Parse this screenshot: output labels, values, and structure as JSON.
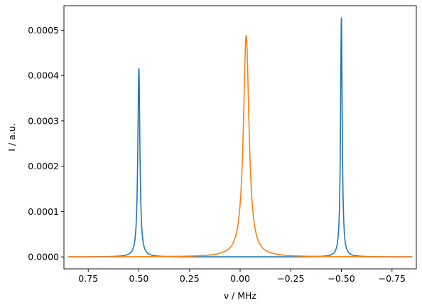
{
  "chart_data": {
    "type": "line",
    "xlabel": "ν / MHz",
    "ylabel": "I / a.u.",
    "x_inverted": true,
    "xlim": [
      0.87,
      -0.87
    ],
    "ylim": [
      -2.64e-05,
      0.000554
    ],
    "grid": false,
    "legend": "none",
    "x_ticks": [
      {
        "value": 0.75,
        "label": "0.75"
      },
      {
        "value": 0.5,
        "label": "0.50"
      },
      {
        "value": 0.25,
        "label": "0.25"
      },
      {
        "value": 0.0,
        "label": "0.00"
      },
      {
        "value": -0.25,
        "label": "−0.25"
      },
      {
        "value": -0.5,
        "label": "−0.50"
      },
      {
        "value": -0.75,
        "label": "−0.75"
      }
    ],
    "y_ticks": [
      {
        "value": 0.0,
        "label": "0.0000"
      },
      {
        "value": 0.0001,
        "label": "0.0001"
      },
      {
        "value": 0.0002,
        "label": "0.0002"
      },
      {
        "value": 0.0003,
        "label": "0.0003"
      },
      {
        "value": 0.0004,
        "label": "0.0004"
      },
      {
        "value": 0.0005,
        "label": "0.0005"
      }
    ],
    "x_range": [
      -0.85,
      0.85
    ],
    "series": [
      {
        "color": "#1f77b4",
        "lorentz_peaks": [
          {
            "center": 0.5,
            "height": 0.000415,
            "hwhm": 0.0062
          },
          {
            "center": -0.5,
            "height": 0.000527,
            "hwhm": 0.0049
          }
        ]
      },
      {
        "color": "#ff7f0e",
        "lorentz_peaks": [
          {
            "center": -0.03,
            "height": 0.000488,
            "hwhm": 0.0168
          }
        ]
      }
    ]
  }
}
